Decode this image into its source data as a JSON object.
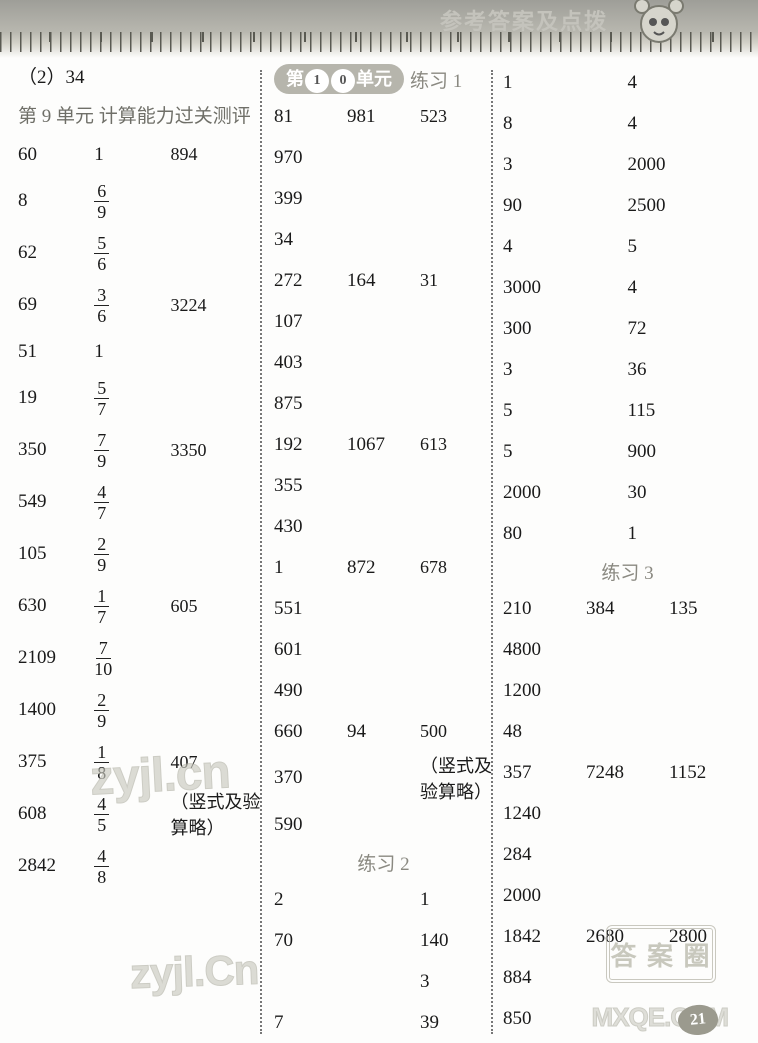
{
  "header": {
    "banner": "参考答案及点拨"
  },
  "left": {
    "topline": "（2）34",
    "title": "第 9 单元  计算能力过关测评",
    "rows": [
      [
        "60",
        "1",
        "894"
      ],
      [
        "8",
        "6/9",
        ""
      ],
      [
        "62",
        "5/6",
        ""
      ],
      [
        "69",
        "3/6",
        "3224"
      ],
      [
        "51",
        "1",
        ""
      ],
      [
        "19",
        "5/7",
        ""
      ],
      [
        "350",
        "7/9",
        "3350"
      ],
      [
        "549",
        "4/7",
        ""
      ],
      [
        "105",
        "2/9",
        ""
      ],
      [
        "630",
        "1/7",
        "605"
      ],
      [
        "2109",
        "7/10",
        ""
      ],
      [
        "1400",
        "2/9",
        ""
      ],
      [
        "375",
        "1/8",
        "407"
      ],
      [
        "608",
        "4/5",
        "（竖式及验算略）"
      ],
      [
        "2842",
        "4/8",
        ""
      ]
    ]
  },
  "middle": {
    "pillPrefix": "第",
    "pillNum1": "1",
    "pillNum2": "0",
    "pillSuffix": "单元",
    "ex1": "练习 1",
    "block": [
      [
        "81",
        "981",
        "523"
      ],
      [
        "970",
        "",
        ""
      ],
      [
        "399",
        "",
        ""
      ],
      [
        "34",
        "",
        ""
      ],
      [
        "272",
        "164",
        "31"
      ],
      [
        "107",
        "",
        ""
      ],
      [
        "403",
        "",
        ""
      ],
      [
        "875",
        "",
        ""
      ],
      [
        "192",
        "1067",
        "613"
      ],
      [
        "355",
        "",
        ""
      ],
      [
        "430",
        "",
        ""
      ],
      [
        "1",
        "872",
        "678"
      ],
      [
        "551",
        "",
        ""
      ],
      [
        "601",
        "",
        ""
      ],
      [
        "490",
        "",
        ""
      ],
      [
        "660",
        "94",
        "500"
      ],
      [
        "370",
        "",
        "（竖式及验算略）"
      ],
      [
        "590",
        "",
        ""
      ]
    ],
    "ex2": "练习 2",
    "block2": [
      [
        "2",
        "",
        "1"
      ],
      [
        "70",
        "",
        "140"
      ],
      [
        "",
        "",
        "3"
      ],
      [
        "7",
        "",
        "39"
      ]
    ]
  },
  "right": {
    "pairs": [
      [
        "1",
        "4"
      ],
      [
        "8",
        "4"
      ],
      [
        "3",
        "2000"
      ],
      [
        "90",
        "2500"
      ],
      [
        "4",
        "5"
      ],
      [
        "3000",
        "4"
      ],
      [
        "300",
        "72"
      ],
      [
        "3",
        "36"
      ],
      [
        "5",
        "115"
      ],
      [
        "5",
        "900"
      ],
      [
        "2000",
        "30"
      ],
      [
        "80",
        "1"
      ]
    ],
    "ex3": "练习 3",
    "r3": [
      "210",
      "384",
      "135"
    ],
    "list1": [
      "4800",
      "1200",
      "48"
    ],
    "r4": [
      "357",
      "7248",
      "1152"
    ],
    "list2": [
      "1240",
      "284",
      "2000"
    ],
    "r5": [
      "1842",
      "2680",
      "2800"
    ],
    "list3": [
      "884",
      "850"
    ]
  },
  "page": "21",
  "seal": "答 案 圈",
  "mxqe": "MXQE.COM",
  "zy": "zyjl.cn",
  "zy2": "zyjl.Cn"
}
